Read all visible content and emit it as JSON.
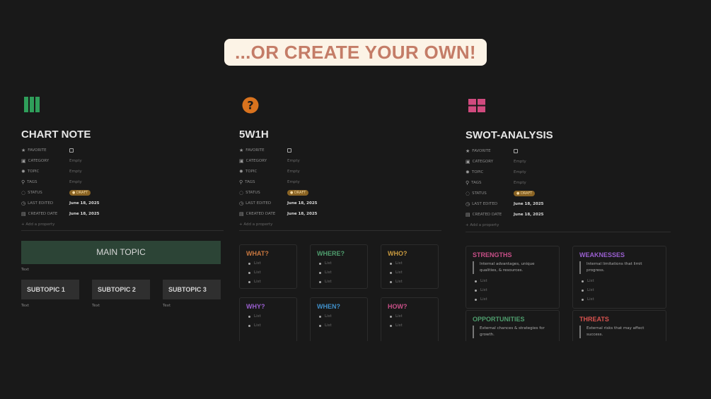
{
  "banner": "...OR CREATE YOUR OWN!",
  "colors": {
    "green": "#2f9e5a",
    "orange": "#d9731e",
    "pink": "#d04a7e",
    "main_topic_bg": "#2c4436"
  },
  "properties": [
    {
      "icon": "star-icon",
      "glyph": "★",
      "label": "FAVORITE",
      "type": "checkbox"
    },
    {
      "icon": "briefcase-icon",
      "glyph": "▣",
      "label": "CATEGORY",
      "value": "Empty"
    },
    {
      "icon": "gear-icon",
      "glyph": "✹",
      "label": "TOPIC",
      "value": "Empty"
    },
    {
      "icon": "pin-icon",
      "glyph": "⚲",
      "label": "TAGS",
      "value": "Empty"
    },
    {
      "icon": "status-icon",
      "glyph": "◌",
      "label": "STATUS",
      "value": "● DRAFT",
      "type": "badge"
    },
    {
      "icon": "clock-icon",
      "glyph": "◷",
      "label": "LAST EDITED",
      "value": "June 18, 2025",
      "type": "date"
    },
    {
      "icon": "calendar-icon",
      "glyph": "▤",
      "label": "CREATED DATE",
      "value": "June 18, 2025",
      "type": "date"
    }
  ],
  "add_property": "+ Add a property",
  "chart_note": {
    "title": "CHART NOTE",
    "main_topic": "MAIN TOPIC",
    "text": "Text",
    "subtopics": [
      "SUBTOPIC 1",
      "SUBTOPIC 2",
      "SUBTOPIC 3"
    ]
  },
  "w5h1": {
    "title": "5W1H",
    "cards": [
      {
        "title": "WHAT?",
        "color": "#c9773f",
        "items": [
          "List",
          "List",
          "List"
        ]
      },
      {
        "title": "WHERE?",
        "color": "#4f9e6e",
        "items": [
          "List",
          "List",
          "List"
        ]
      },
      {
        "title": "WHO?",
        "color": "#c99a3f",
        "items": [
          "List",
          "List",
          "List"
        ]
      },
      {
        "title": "WHY?",
        "color": "#9a5fd0",
        "items": [
          "List",
          "List"
        ]
      },
      {
        "title": "WHEN?",
        "color": "#3f8fc9",
        "items": [
          "List",
          "List"
        ]
      },
      {
        "title": "HOW?",
        "color": "#c94f88",
        "items": [
          "List",
          "List"
        ]
      }
    ]
  },
  "swot": {
    "title": "SWOT-ANALYSIS",
    "cards": [
      {
        "title": "STRENGTHS",
        "color": "#c94f88",
        "desc": "Internal advantages, unique qualities, & resources.",
        "items": [
          "List",
          "List",
          "List"
        ]
      },
      {
        "title": "WEAKNESSES",
        "color": "#9a5fd0",
        "desc": "Internal limitations that limit progress.",
        "items": [
          "List",
          "List",
          "List"
        ]
      },
      {
        "title": "OPPORTUNITIES",
        "color": "#4f9e6e",
        "desc": "External chances & strategies for growth.",
        "items": []
      },
      {
        "title": "THREATS",
        "color": "#d9534f",
        "desc": "External risks that may affect success.",
        "items": []
      }
    ]
  }
}
